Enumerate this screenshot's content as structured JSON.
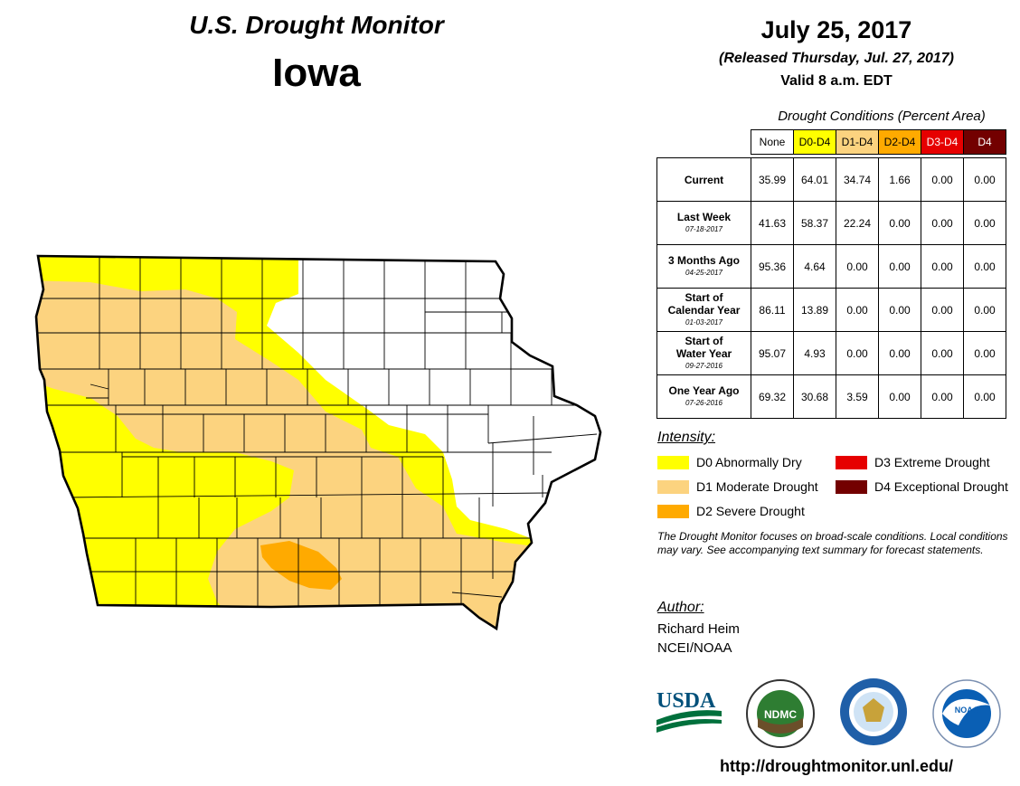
{
  "header": {
    "monitor_title": "U.S. Drought Monitor",
    "state": "Iowa",
    "date": "July 25, 2017",
    "released": "(Released Thursday, Jul. 27, 2017)",
    "valid": "Valid 8 a.m. EDT"
  },
  "table": {
    "caption": "Drought Conditions (Percent Area)",
    "columns": [
      {
        "label": "None",
        "color": "#ffffff",
        "text_color": "#000000"
      },
      {
        "label": "D0-D4",
        "color": "#ffff00",
        "text_color": "#000000"
      },
      {
        "label": "D1-D4",
        "color": "#fcd37f",
        "text_color": "#000000"
      },
      {
        "label": "D2-D4",
        "color": "#ffaa00",
        "text_color": "#000000"
      },
      {
        "label": "D3-D4",
        "color": "#e60000",
        "text_color": "#ffffff"
      },
      {
        "label": "D4",
        "color": "#730000",
        "text_color": "#ffffff"
      }
    ],
    "rows": [
      {
        "label": "Current",
        "label2": "",
        "date": "",
        "values": [
          "35.99",
          "64.01",
          "34.74",
          "1.66",
          "0.00",
          "0.00"
        ]
      },
      {
        "label": "Last Week",
        "label2": "",
        "date": "07-18-2017",
        "values": [
          "41.63",
          "58.37",
          "22.24",
          "0.00",
          "0.00",
          "0.00"
        ]
      },
      {
        "label": "3 Months Ago",
        "label2": "",
        "date": "04-25-2017",
        "values": [
          "95.36",
          "4.64",
          "0.00",
          "0.00",
          "0.00",
          "0.00"
        ]
      },
      {
        "label": "Start of",
        "label2": "Calendar Year",
        "date": "01-03-2017",
        "values": [
          "86.11",
          "13.89",
          "0.00",
          "0.00",
          "0.00",
          "0.00"
        ]
      },
      {
        "label": "Start of",
        "label2": "Water Year",
        "date": "09-27-2016",
        "values": [
          "95.07",
          "4.93",
          "0.00",
          "0.00",
          "0.00",
          "0.00"
        ]
      },
      {
        "label": "One Year Ago",
        "label2": "",
        "date": "07-26-2016",
        "values": [
          "69.32",
          "30.68",
          "3.59",
          "0.00",
          "0.00",
          "0.00"
        ]
      }
    ]
  },
  "legend": {
    "title": "Intensity:",
    "items": [
      {
        "label": "D0 Abnormally Dry",
        "color": "#ffff00"
      },
      {
        "label": "D1 Moderate Drought",
        "color": "#fcd37f"
      },
      {
        "label": "D2 Severe Drought",
        "color": "#ffaa00"
      },
      {
        "label": "D3 Extreme Drought",
        "color": "#e60000"
      },
      {
        "label": "D4 Exceptional Drought",
        "color": "#730000"
      }
    ]
  },
  "note": "The Drought Monitor focuses on broad-scale conditions. Local conditions may vary. See accompanying text summary for forecast statements.",
  "author": {
    "title": "Author:",
    "name": "Richard Heim",
    "org": "NCEI/NOAA"
  },
  "logos": {
    "usda": "USDA",
    "ndmc": "NDMC",
    "noaa": "NOAA"
  },
  "url": "http://droughtmonitor.unl.edu/",
  "colors": {
    "d0": "#ffff00",
    "d1": "#fcd37f",
    "d2": "#ffaa00",
    "border": "#000000",
    "county_line": "#555555"
  }
}
